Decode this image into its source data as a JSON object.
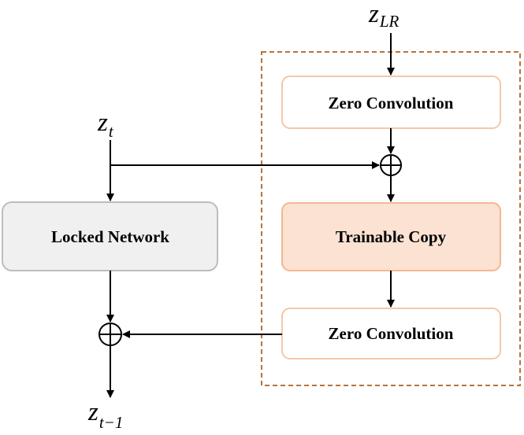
{
  "diagram": {
    "inputs": {
      "z_lr": {
        "symbol": "z",
        "subscript": "LR"
      },
      "z_t": {
        "symbol": "z",
        "subscript": "t"
      }
    },
    "output": {
      "symbol": "z",
      "subscript": "t−1"
    },
    "blocks": {
      "locked_network": "Locked Network",
      "zero_conv_top": "Zero Convolution",
      "trainable_copy": "Trainable Copy",
      "zero_conv_bottom": "Zero Convolution"
    },
    "operators": {
      "add": "⊕"
    },
    "colors": {
      "locked_fill": "#f0f0f0",
      "locked_stroke": "#bdbdbd",
      "zero_conv_fill": "#ffffff",
      "zero_conv_stroke": "#f5c8a6",
      "trainable_fill": "#fbe2d2",
      "trainable_stroke": "#f3b893",
      "dashed_frame": "#b8733a",
      "arrow": "#000000"
    }
  }
}
